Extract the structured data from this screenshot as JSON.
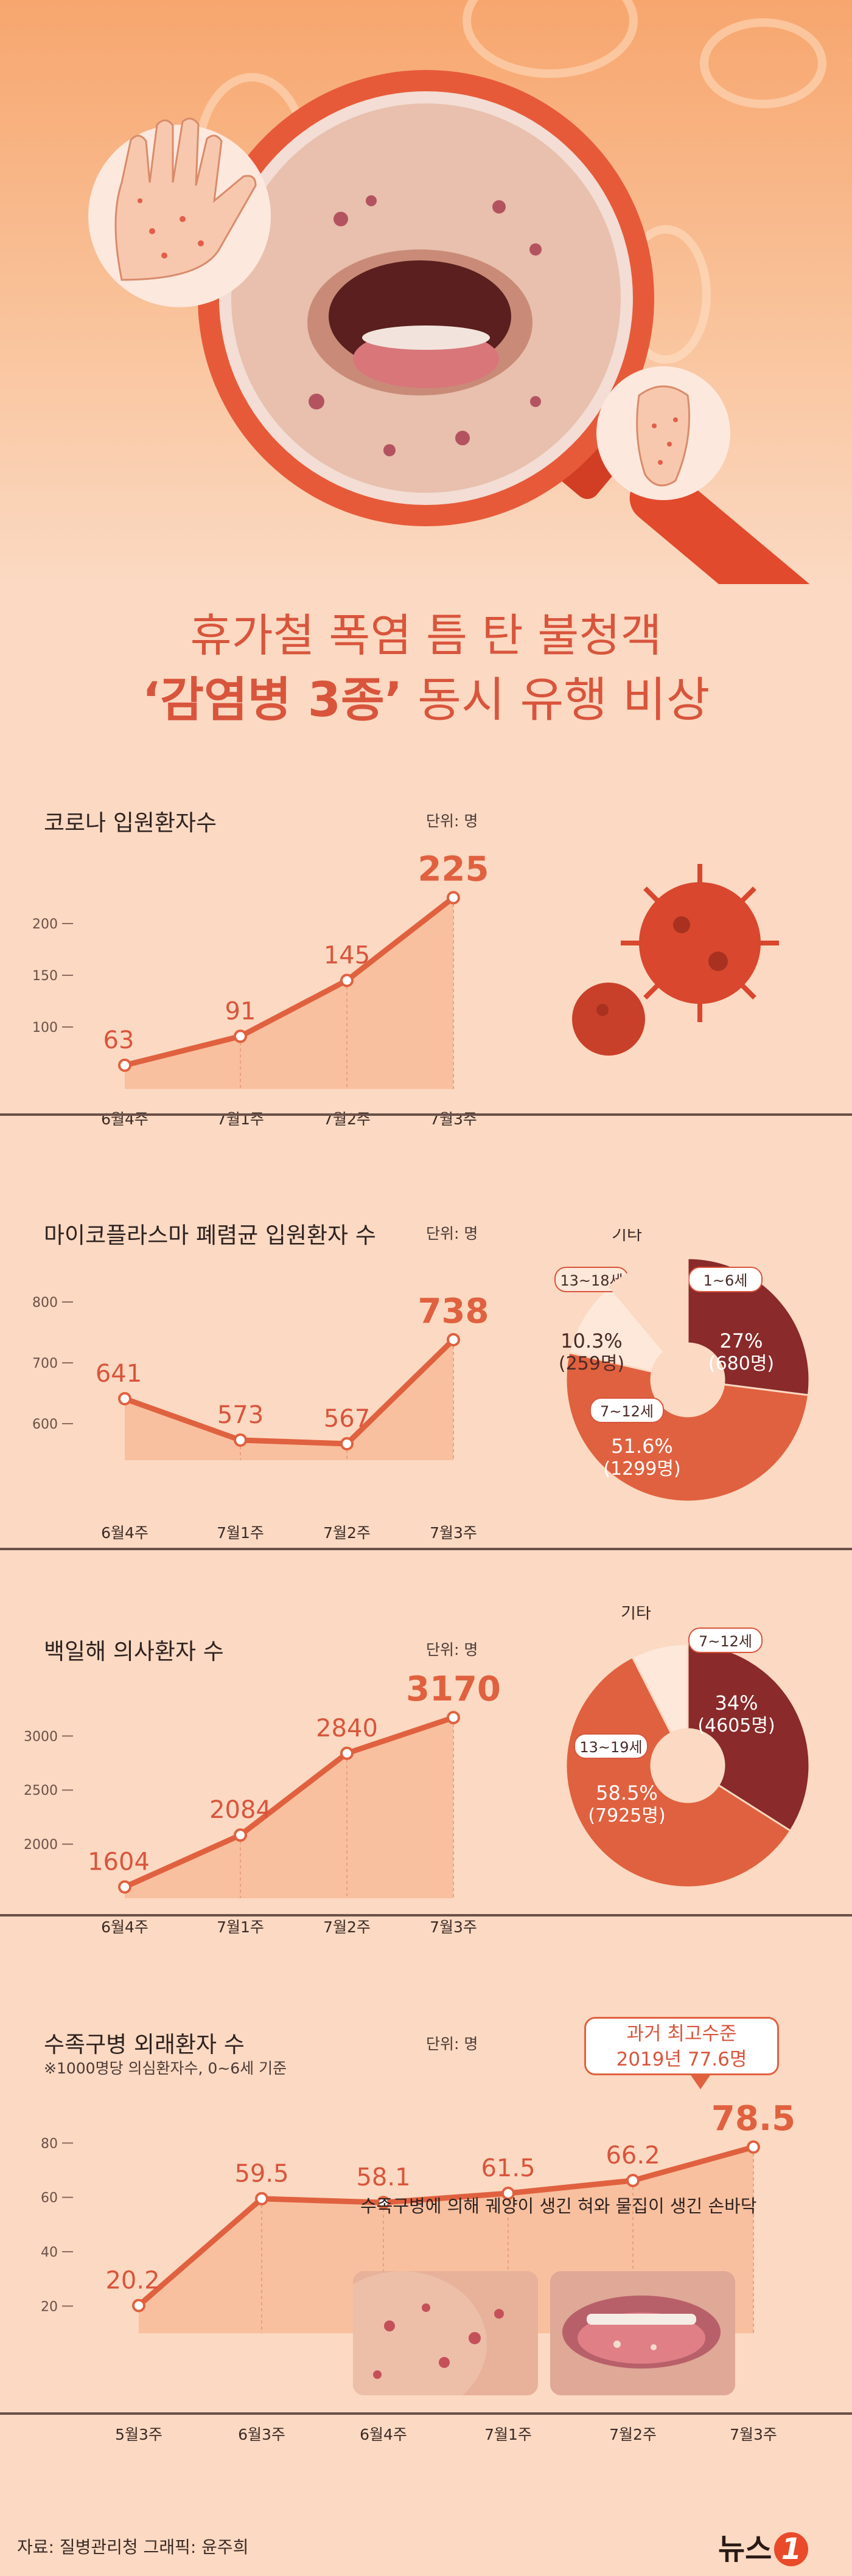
{
  "title_line1": "휴가철 폭염 틈 탄 불청객",
  "title_line2_highlight": "‘감염병 3종’",
  "title_line2_rest": " 동시 유행 비상",
  "colors": {
    "accent": "#e0613f",
    "dark_red": "#8a2a2a",
    "light": "#fde8da",
    "bg": "#fbd9c2"
  },
  "chart_data": [
    {
      "type": "line",
      "title": "코로나 입원환자수",
      "unit": "단위: 명",
      "categories": [
        "6월4주",
        "7월1주",
        "7월2주",
        "7월3주"
      ],
      "values": [
        63,
        91,
        145,
        225
      ],
      "value_labels": [
        "63",
        "91",
        "145",
        "225"
      ],
      "ylim": [
        40,
        240
      ],
      "yticks": [
        100,
        150,
        200
      ],
      "ytick_labels": [
        "100",
        "150",
        "200"
      ]
    },
    {
      "type": "line",
      "title": "마이코플라스마 폐렴균 입원환자 수",
      "unit": "단위: 명",
      "categories": [
        "6월4주",
        "7월1주",
        "7월2주",
        "7월3주"
      ],
      "values": [
        641,
        573,
        567,
        738
      ],
      "value_labels": [
        "641",
        "573",
        "567",
        "738"
      ],
      "ylim": [
        540,
        800
      ],
      "yticks": [
        600,
        700,
        800
      ],
      "ytick_labels": [
        "600",
        "700",
        "800"
      ],
      "pie": {
        "slices": [
          {
            "label": "1~6세",
            "value": 27,
            "text": "27%",
            "sub": "(680명)"
          },
          {
            "label": "7~12세",
            "value": 51.6,
            "text": "51.6%",
            "sub": "(1299명)"
          },
          {
            "label": "13~18세",
            "value": 10.3,
            "text": "10.3%",
            "sub": "(259명)"
          },
          {
            "label": "기타",
            "value": 11.1,
            "text": "",
            "sub": ""
          }
        ]
      }
    },
    {
      "type": "line",
      "title": "백일해 의사환자 수",
      "unit": "단위: 명",
      "categories": [
        "6월4주",
        "7월1주",
        "7월2주",
        "7월3주"
      ],
      "values": [
        1604,
        2084,
        2840,
        3170
      ],
      "value_labels": [
        "1604",
        "2084",
        "2840",
        "3170"
      ],
      "ylim": [
        1500,
        3300
      ],
      "yticks": [
        2000,
        2500,
        3000
      ],
      "ytick_labels": [
        "2000",
        "2500",
        "3000"
      ],
      "pie": {
        "slices": [
          {
            "label": "7~12세",
            "value": 34,
            "text": "34%",
            "sub": "(4605명)"
          },
          {
            "label": "13~19세",
            "value": 58.5,
            "text": "58.5%",
            "sub": "(7925명)"
          },
          {
            "label": "기타",
            "value": 7.5,
            "text": "",
            "sub": ""
          }
        ]
      }
    },
    {
      "type": "line",
      "title": "수족구병 외래환자 수",
      "note": "※1000명당 의심환자수, 0~6세 기준",
      "unit": "단위: 명",
      "categories": [
        "5월3주",
        "6월3주",
        "6월4주",
        "7월1주",
        "7월2주",
        "7월3주"
      ],
      "values": [
        20.2,
        59.5,
        58.1,
        61.5,
        66.2,
        78.5
      ],
      "value_labels": [
        "20.2",
        "59.5",
        "58.1",
        "61.5",
        "66.2",
        "78.5"
      ],
      "ylim": [
        10,
        85
      ],
      "yticks": [
        20,
        40,
        60,
        80
      ],
      "ytick_labels": [
        "20",
        "40",
        "60",
        "80"
      ]
    }
  ],
  "callout": {
    "line1": "과거 최고수준",
    "line2": "2019년 77.6명"
  },
  "photo_caption": "수족구병에 의해 궤양이 생긴 혀와 물집이 생긴 손바닥",
  "footer": {
    "source": "자료: 질병관리청  그래픽: 윤주희",
    "logo_text": "뉴스",
    "logo_num": "1"
  }
}
